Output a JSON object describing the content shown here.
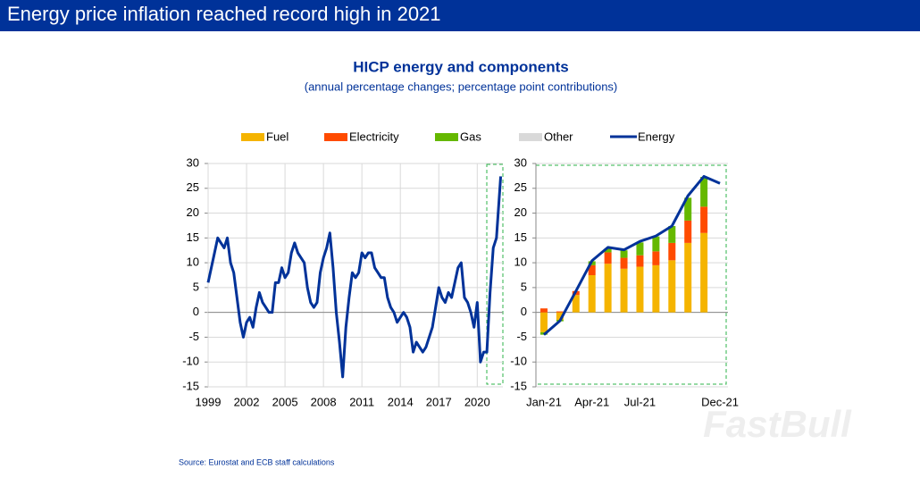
{
  "header": {
    "title": "Energy price inflation reached record high in 2021"
  },
  "figure": {
    "title": "HICP energy and components",
    "subtitle": "(annual percentage changes; percentage point contributions)",
    "source": "Source: Eurostat and ECB staff calculations"
  },
  "watermark": "FastBull",
  "chart_data": [
    {
      "type": "line",
      "x": [
        1999,
        1999.25,
        1999.5,
        1999.75,
        2000,
        2000.25,
        2000.5,
        2000.75,
        2001,
        2001.25,
        2001.5,
        2001.75,
        2002,
        2002.25,
        2002.5,
        2002.75,
        2003,
        2003.25,
        2003.5,
        2003.75,
        2004,
        2004.25,
        2004.5,
        2004.75,
        2005,
        2005.25,
        2005.5,
        2005.75,
        2006,
        2006.25,
        2006.5,
        2006.75,
        2007,
        2007.25,
        2007.5,
        2007.75,
        2008,
        2008.25,
        2008.5,
        2008.75,
        2009,
        2009.25,
        2009.5,
        2009.75,
        2010,
        2010.25,
        2010.5,
        2010.75,
        2011,
        2011.25,
        2011.5,
        2011.75,
        2012,
        2012.25,
        2012.5,
        2012.75,
        2013,
        2013.25,
        2013.5,
        2013.75,
        2014,
        2014.25,
        2014.5,
        2014.75,
        2015,
        2015.25,
        2015.5,
        2015.75,
        2016,
        2016.25,
        2016.5,
        2016.75,
        2017,
        2017.25,
        2017.5,
        2017.75,
        2018,
        2018.25,
        2018.5,
        2018.75,
        2019,
        2019.25,
        2019.5,
        2019.75,
        2020,
        2020.25,
        2020.5,
        2020.75,
        2021,
        2021.25,
        2021.5,
        2021.83
      ],
      "series": [
        {
          "name": "Energy",
          "color": "#003299",
          "values": [
            6,
            9,
            12,
            15,
            14,
            13,
            15,
            10,
            8,
            3,
            -2,
            -5,
            -2,
            -1,
            -3,
            1,
            4,
            2,
            1,
            0,
            0,
            6,
            6,
            9,
            7,
            8,
            12,
            14,
            12,
            11,
            10,
            5,
            2,
            1,
            2,
            8,
            11,
            13,
            16,
            9,
            0,
            -6,
            -13,
            -3,
            3,
            8,
            7,
            8,
            12,
            11,
            12,
            12,
            9,
            8,
            7,
            7,
            3,
            1,
            0,
            -2,
            -1,
            0,
            -1,
            -3,
            -8,
            -6,
            -7,
            -8,
            -7,
            -5,
            -3,
            1,
            5,
            3,
            2,
            4,
            3,
            6,
            9,
            10,
            3,
            2,
            0,
            -3,
            2,
            -10,
            -8,
            -8,
            4,
            13,
            15,
            27.4
          ]
        }
      ],
      "xlim": [
        1999,
        2022
      ],
      "xticks": [
        1999,
        2002,
        2005,
        2008,
        2011,
        2014,
        2017,
        2020
      ],
      "ylim": [
        -15,
        30
      ],
      "yticks": [
        30,
        25,
        20,
        15,
        10,
        5,
        0,
        -5,
        -10,
        -15
      ],
      "grid": true
    },
    {
      "type": "bar",
      "categories": [
        "Jan-21",
        null,
        null,
        "Apr-21",
        null,
        null,
        "Jul-21",
        null,
        null,
        null,
        null,
        "Dec-21"
      ],
      "series": [
        {
          "name": "Fuel",
          "color": "#f5b400",
          "values": [
            -4,
            -1.5,
            3.5,
            7.5,
            9.8,
            8.8,
            9.2,
            9.5,
            10.5,
            14,
            16,
            null
          ]
        },
        {
          "name": "Electricity",
          "color": "#ff4b00",
          "values": [
            0.8,
            0.2,
            0.8,
            2,
            2.3,
            2.2,
            2.3,
            2.8,
            3.5,
            4.5,
            5.3,
            null
          ]
        },
        {
          "name": "Gas",
          "color": "#65b800",
          "values": [
            -0.5,
            -0.3,
            0,
            0.8,
            0.8,
            1.5,
            2.6,
            3,
            3.4,
            4.6,
            6,
            null
          ]
        },
        {
          "name": "Other",
          "color": "#d9d9d9",
          "values": [
            0,
            0,
            0,
            0,
            0,
            0,
            0,
            0,
            0,
            0,
            0,
            null
          ]
        },
        {
          "name": "Energy",
          "color": "#003299",
          "type": "line",
          "values": [
            -4.5,
            -1.7,
            4.3,
            10.4,
            13.1,
            12.6,
            14.3,
            15.4,
            17.4,
            23.5,
            27.4,
            26
          ]
        }
      ],
      "ylim": [
        -15,
        30
      ],
      "yticks": [
        30,
        25,
        20,
        15,
        10,
        5,
        0,
        -5,
        -10,
        -15
      ],
      "grid": true
    }
  ]
}
